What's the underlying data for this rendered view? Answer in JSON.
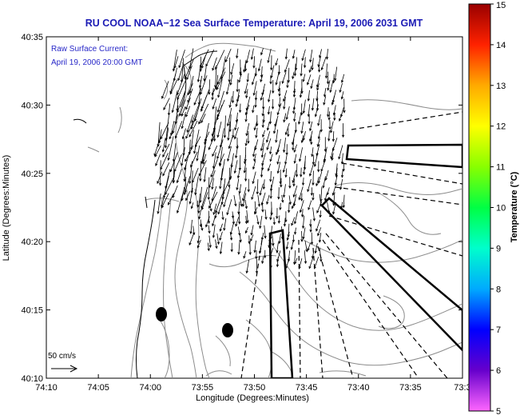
{
  "title": "RU COOL  NOAA−12  Sea Surface Temperature:  April 19, 2006 2031 GMT",
  "annotation": {
    "line1": "Raw Surface Current:",
    "line2": "April 19, 2006 20:00 GMT"
  },
  "scale_label": "50 cm/s",
  "axes": {
    "x_label": "Longitude (Degrees:Minutes)",
    "y_label": "Latitude (Degrees:Minutes)",
    "x_ticks": [
      "74:10",
      "74:05",
      "74:00",
      "73:55",
      "73:50",
      "73:45",
      "73:40",
      "73:35",
      "73:3"
    ],
    "y_ticks": [
      "40:35",
      "40:30",
      "40:25",
      "40:20",
      "40:15",
      "40:10"
    ]
  },
  "colorbar": {
    "label": "Temperature (°C)",
    "ticks": [
      "15",
      "14",
      "13",
      "12",
      "11",
      "10",
      "9",
      "8",
      "7",
      "6",
      "5"
    ],
    "stops": [
      "#ff66ff",
      "#6600cc",
      "#0000ff",
      "#00aaff",
      "#00ffcc",
      "#00ff44",
      "#88ff00",
      "#ffff00",
      "#ffaa00",
      "#ff2200",
      "#990000"
    ]
  },
  "colors": {
    "title": "#1b1bb5",
    "annotation": "#2828c8",
    "contour": "#8c8c8c",
    "vector": "#000000"
  }
}
